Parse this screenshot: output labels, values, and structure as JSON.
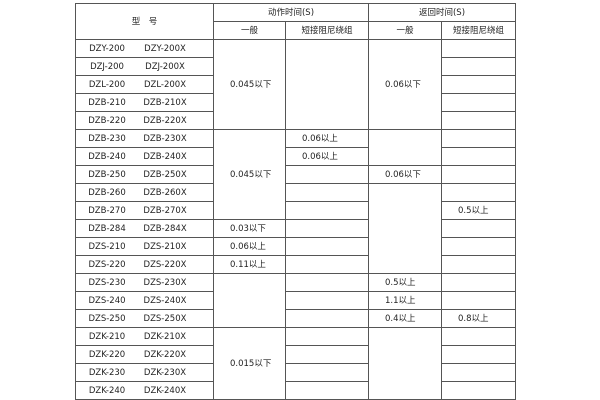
{
  "header": {
    "model": "型　号",
    "action": "动作时间(S)",
    "return": "返回时间(S)",
    "sub": [
      "一般",
      "短接阻尼绕组",
      "一般",
      "短接阻尼绕组"
    ]
  },
  "models": [
    [
      "DZY-200",
      "DZY-200X"
    ],
    [
      "DZJ-200",
      "DZJ-200X"
    ],
    [
      "DZL-200",
      "DZL-200X"
    ],
    [
      "DZB-210",
      "DZB-210X"
    ],
    [
      "DZB-220",
      "DZB-220X"
    ],
    [
      "DZB-230",
      "DZB-230X"
    ],
    [
      "DZB-240",
      "DZB-240X"
    ],
    [
      "DZB-250",
      "DZB-250X"
    ],
    [
      "DZB-260",
      "DZB-260X"
    ],
    [
      "DZB-270",
      "DZB-270X"
    ],
    [
      "DZB-284",
      "DZB-284X"
    ],
    [
      "DZS-210",
      "DZS-210X"
    ],
    [
      "DZS-220",
      "DZS-220X"
    ],
    [
      "DZS-230",
      "DZS-230X"
    ],
    [
      "DZS-240",
      "DZS-240X"
    ],
    [
      "DZS-250",
      "DZS-250X"
    ],
    [
      "DZK-210",
      "DZK-210X"
    ],
    [
      "DZK-220",
      "DZK-220X"
    ],
    [
      "DZK-230",
      "DZK-230X"
    ],
    [
      "DZK-240",
      "DZK-240X"
    ]
  ],
  "columns": [
    [
      {
        "span": 5,
        "text": "0.045以下"
      },
      {
        "span": 5,
        "text": "0.045以下"
      },
      {
        "span": 1,
        "text": "0.03以下"
      },
      {
        "span": 1,
        "text": "0.06以上"
      },
      {
        "span": 1,
        "text": "0.11以上"
      },
      {
        "span": 3
      },
      {
        "span": 4,
        "text": "0.015以下"
      }
    ],
    [
      {
        "span": 5
      },
      {
        "span": 1,
        "text": "0.06以上"
      },
      {
        "span": 1,
        "text": "0.06以上"
      },
      {
        "span": 1
      },
      {
        "span": 1
      },
      {
        "span": 1
      },
      {
        "span": 1
      },
      {
        "span": 1
      },
      {
        "span": 1
      },
      {
        "span": 1
      },
      {
        "span": 1
      },
      {
        "span": 1
      },
      {
        "span": 1
      },
      {
        "span": 1
      },
      {
        "span": 1
      },
      {
        "span": 1
      }
    ],
    [
      {
        "span": 5,
        "text": "0.06以下"
      },
      {
        "span": 2
      },
      {
        "span": 1,
        "text": "0.06以下"
      },
      {
        "span": 5
      },
      {
        "span": 1,
        "text": "0.5以上"
      },
      {
        "span": 1,
        "text": "1.1以上"
      },
      {
        "span": 1,
        "text": "0.4以上"
      },
      {
        "span": 4
      }
    ],
    [
      {
        "span": 1
      },
      {
        "span": 1
      },
      {
        "span": 1
      },
      {
        "span": 1
      },
      {
        "span": 1
      },
      {
        "span": 1
      },
      {
        "span": 1
      },
      {
        "span": 1
      },
      {
        "span": 1
      },
      {
        "span": 1,
        "text": "0.5以上"
      },
      {
        "span": 1
      },
      {
        "span": 1
      },
      {
        "span": 1
      },
      {
        "span": 1
      },
      {
        "span": 1
      },
      {
        "span": 1,
        "text": "0.8以上"
      },
      {
        "span": 1
      },
      {
        "span": 1
      },
      {
        "span": 1
      },
      {
        "span": 1
      }
    ]
  ]
}
